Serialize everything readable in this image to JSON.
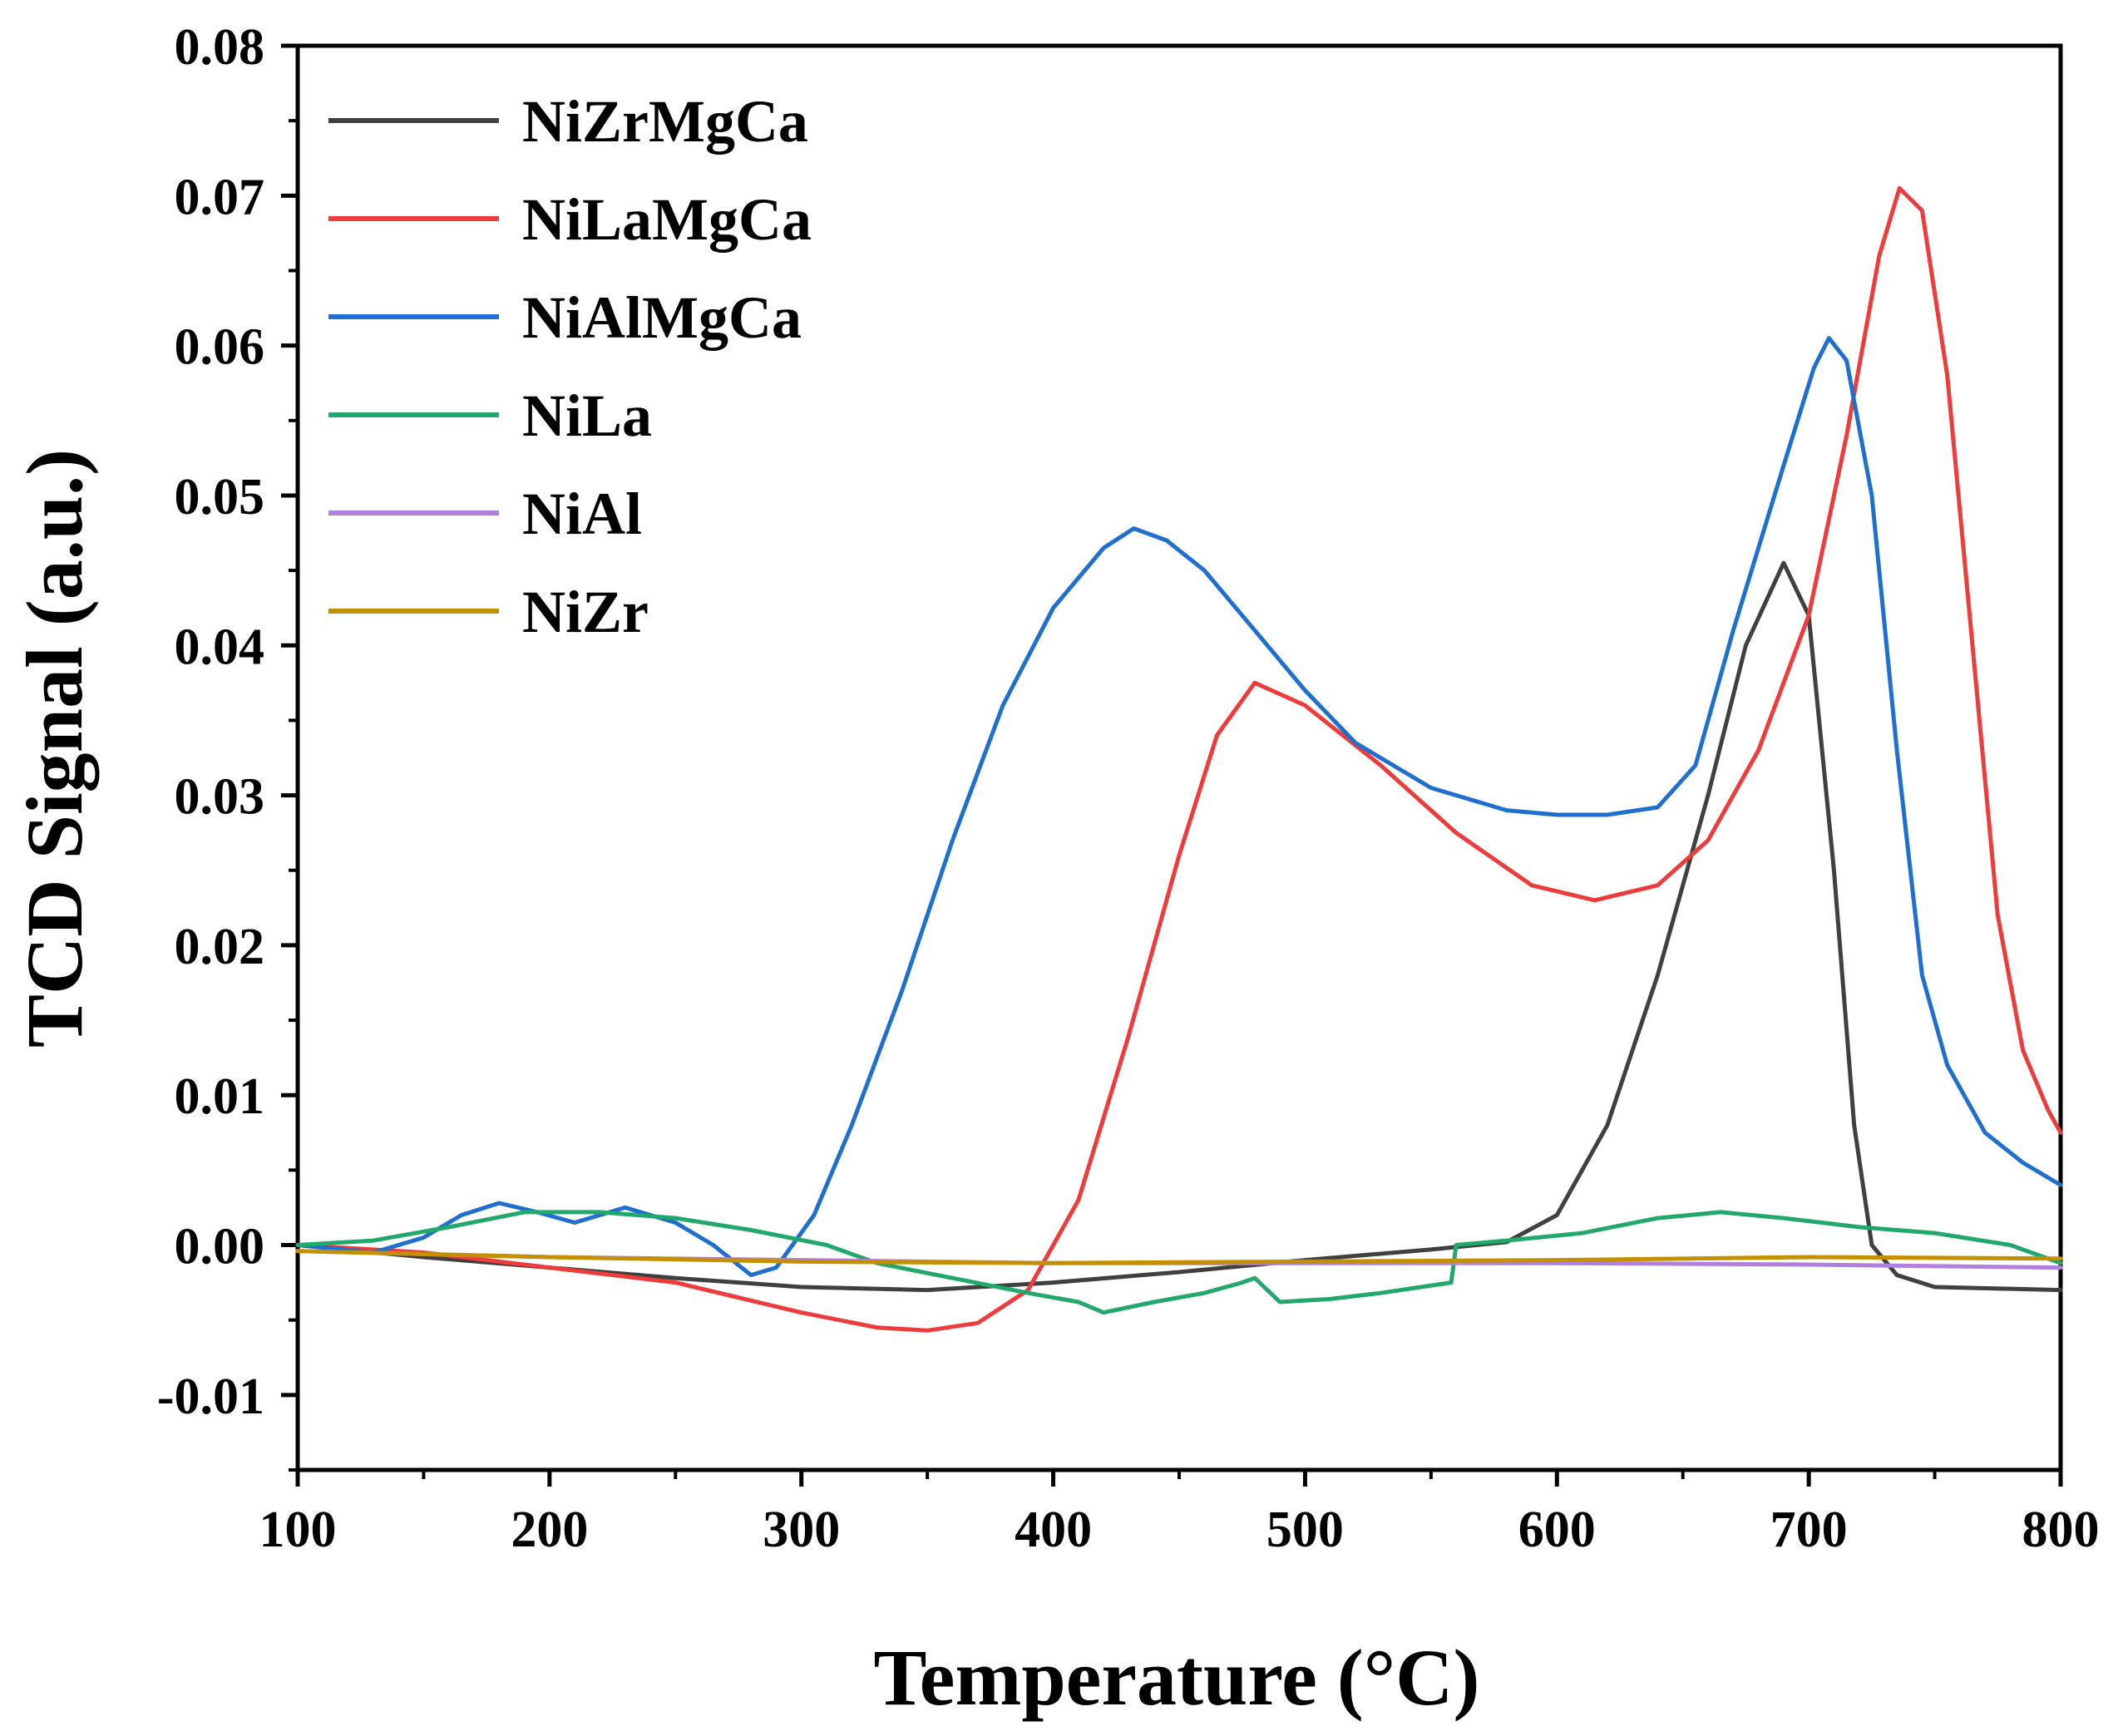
{
  "chart_data": {
    "type": "line",
    "title": "",
    "xlabel": "Temperature (°C)",
    "ylabel": "TCD Signal (a.u.)",
    "xlim": [
      100,
      800
    ],
    "ylim": [
      -0.015,
      0.08
    ],
    "x_ticks": [
      100,
      200,
      300,
      400,
      500,
      600,
      700,
      800
    ],
    "x_tick_labels": [
      "100",
      "200",
      "300",
      "400",
      "500",
      "600",
      "700",
      "800"
    ],
    "y_ticks": [
      -0.01,
      0.0,
      0.01,
      0.02,
      0.03,
      0.04,
      0.05,
      0.06,
      0.07,
      0.08
    ],
    "y_tick_labels": [
      "-0.01",
      "0.00",
      "0.01",
      "0.02",
      "0.03",
      "0.04",
      "0.05",
      "0.06",
      "0.07",
      "0.08"
    ],
    "grid": false,
    "legend_position": "top-left",
    "series": [
      {
        "name": "NiZrMgCa",
        "color": "#404040",
        "points": [
          [
            100,
            0.0
          ],
          [
            150,
            -0.0008
          ],
          [
            200,
            -0.0015
          ],
          [
            250,
            -0.0022
          ],
          [
            300,
            -0.0028
          ],
          [
            350,
            -0.003
          ],
          [
            400,
            -0.0025
          ],
          [
            450,
            -0.0018
          ],
          [
            500,
            -0.001
          ],
          [
            550,
            -0.0003
          ],
          [
            580,
            0.0002
          ],
          [
            600,
            0.002
          ],
          [
            620,
            0.008
          ],
          [
            640,
            0.018
          ],
          [
            660,
            0.03
          ],
          [
            675,
            0.04
          ],
          [
            690,
            0.0455
          ],
          [
            700,
            0.042
          ],
          [
            710,
            0.025
          ],
          [
            718,
            0.008
          ],
          [
            725,
            0.0
          ],
          [
            735,
            -0.002
          ],
          [
            750,
            -0.0028
          ],
          [
            800,
            -0.003
          ]
        ]
      },
      {
        "name": "NiLaMgCa",
        "color": "#ee3b3b",
        "points": [
          [
            100,
            0.0
          ],
          [
            150,
            -0.0005
          ],
          [
            200,
            -0.0015
          ],
          [
            250,
            -0.0025
          ],
          [
            300,
            -0.0045
          ],
          [
            330,
            -0.0055
          ],
          [
            350,
            -0.0057
          ],
          [
            370,
            -0.0052
          ],
          [
            390,
            -0.003
          ],
          [
            410,
            0.003
          ],
          [
            430,
            0.014
          ],
          [
            450,
            0.026
          ],
          [
            465,
            0.034
          ],
          [
            480,
            0.0375
          ],
          [
            500,
            0.036
          ],
          [
            530,
            0.032
          ],
          [
            560,
            0.0275
          ],
          [
            590,
            0.024
          ],
          [
            615,
            0.023
          ],
          [
            640,
            0.024
          ],
          [
            660,
            0.027
          ],
          [
            680,
            0.033
          ],
          [
            700,
            0.042
          ],
          [
            715,
            0.054
          ],
          [
            728,
            0.066
          ],
          [
            736,
            0.0705
          ],
          [
            745,
            0.069
          ],
          [
            755,
            0.058
          ],
          [
            765,
            0.04
          ],
          [
            775,
            0.022
          ],
          [
            785,
            0.013
          ],
          [
            795,
            0.009
          ],
          [
            800,
            0.0075
          ]
        ]
      },
      {
        "name": "NiAlMgCa",
        "color": "#1e6fd0",
        "points": [
          [
            100,
            0.0
          ],
          [
            130,
            -0.0005
          ],
          [
            150,
            0.0005
          ],
          [
            165,
            0.002
          ],
          [
            180,
            0.0028
          ],
          [
            195,
            0.0022
          ],
          [
            210,
            0.0015
          ],
          [
            230,
            0.0025
          ],
          [
            250,
            0.0015
          ],
          [
            265,
            0.0
          ],
          [
            280,
            -0.002
          ],
          [
            290,
            -0.0015
          ],
          [
            305,
            0.002
          ],
          [
            320,
            0.008
          ],
          [
            340,
            0.017
          ],
          [
            360,
            0.027
          ],
          [
            380,
            0.036
          ],
          [
            400,
            0.0425
          ],
          [
            420,
            0.0465
          ],
          [
            432,
            0.0478
          ],
          [
            445,
            0.047
          ],
          [
            460,
            0.045
          ],
          [
            480,
            0.041
          ],
          [
            500,
            0.037
          ],
          [
            520,
            0.0335
          ],
          [
            550,
            0.0305
          ],
          [
            580,
            0.029
          ],
          [
            600,
            0.0287
          ],
          [
            620,
            0.0287
          ],
          [
            640,
            0.0292
          ],
          [
            655,
            0.032
          ],
          [
            670,
            0.041
          ],
          [
            690,
            0.052
          ],
          [
            702,
            0.0585
          ],
          [
            708,
            0.0605
          ],
          [
            715,
            0.059
          ],
          [
            725,
            0.05
          ],
          [
            735,
            0.033
          ],
          [
            745,
            0.018
          ],
          [
            755,
            0.012
          ],
          [
            770,
            0.0075
          ],
          [
            785,
            0.0055
          ],
          [
            800,
            0.004
          ]
        ]
      },
      {
        "name": "NiLa",
        "color": "#21a86b",
        "points": [
          [
            100,
            0.0
          ],
          [
            130,
            0.0003
          ],
          [
            160,
            0.0012
          ],
          [
            190,
            0.0022
          ],
          [
            220,
            0.0022
          ],
          [
            250,
            0.0018
          ],
          [
            280,
            0.001
          ],
          [
            310,
            0.0
          ],
          [
            330,
            -0.0012
          ],
          [
            360,
            -0.0022
          ],
          [
            390,
            -0.0032
          ],
          [
            410,
            -0.0038
          ],
          [
            420,
            -0.0045
          ],
          [
            440,
            -0.0038
          ],
          [
            460,
            -0.0032
          ],
          [
            475,
            -0.0025
          ],
          [
            480,
            -0.0022
          ],
          [
            490,
            -0.0038
          ],
          [
            510,
            -0.0036
          ],
          [
            530,
            -0.0032
          ],
          [
            558,
            -0.0025
          ],
          [
            560,
            0.0
          ],
          [
            580,
            0.0003
          ],
          [
            610,
            0.0008
          ],
          [
            640,
            0.0018
          ],
          [
            665,
            0.0022
          ],
          [
            690,
            0.0018
          ],
          [
            720,
            0.0012
          ],
          [
            750,
            0.0008
          ],
          [
            780,
            0.0
          ],
          [
            800,
            -0.0012
          ]
        ]
      },
      {
        "name": "NiAl",
        "color": "#b07fe0",
        "points": [
          [
            100,
            -0.0004
          ],
          [
            200,
            -0.0008
          ],
          [
            300,
            -0.001
          ],
          [
            400,
            -0.0012
          ],
          [
            500,
            -0.0012
          ],
          [
            600,
            -0.0012
          ],
          [
            700,
            -0.0013
          ],
          [
            800,
            -0.0015
          ]
        ]
      },
      {
        "name": "NiZr",
        "color": "#c49000",
        "points": [
          [
            100,
            -0.0004
          ],
          [
            200,
            -0.0008
          ],
          [
            300,
            -0.0011
          ],
          [
            400,
            -0.0012
          ],
          [
            500,
            -0.0011
          ],
          [
            600,
            -0.001
          ],
          [
            700,
            -0.0008
          ],
          [
            800,
            -0.0009
          ]
        ]
      }
    ]
  }
}
